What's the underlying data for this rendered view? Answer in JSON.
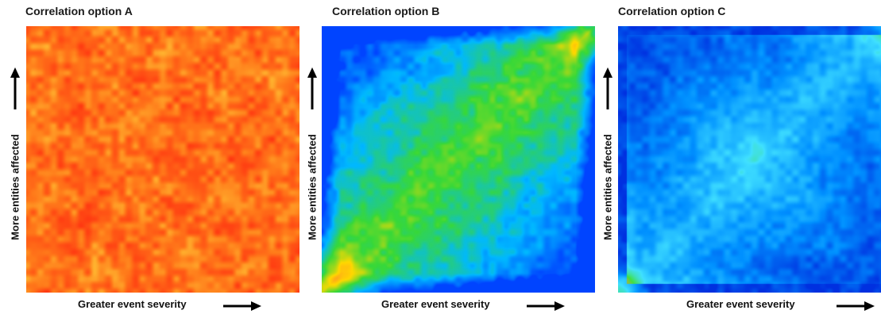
{
  "chart_data": [
    {
      "type": "heatmap",
      "title": "Correlation option A",
      "xlabel": "Greater event severity",
      "ylabel": "More entities affected",
      "grid": false,
      "pattern": "uniform",
      "colors": [
        "#ff3010",
        "#ff7a1a",
        "#ffd23a"
      ]
    },
    {
      "type": "heatmap",
      "title": "Correlation option B",
      "xlabel": "Greater event severity",
      "ylabel": "More entities affected",
      "grid": false,
      "pattern": "positive-correlation",
      "colors": [
        "#0044ff",
        "#00b8ff",
        "#38d838",
        "#ffd800",
        "#ff8030"
      ]
    },
    {
      "type": "heatmap",
      "title": "Correlation option C",
      "xlabel": "Greater event severity",
      "ylabel": "More entities affected",
      "grid": false,
      "pattern": "tail-dependence",
      "colors": [
        "#0030e0",
        "#0090ff",
        "#40e0ff",
        "#40e040",
        "#ff9040"
      ]
    }
  ]
}
